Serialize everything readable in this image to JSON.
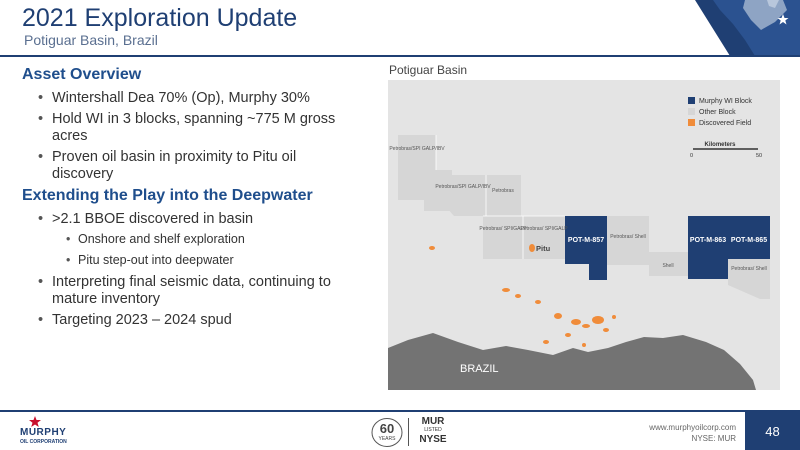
{
  "header": {
    "title": "2021 Exploration Update",
    "subtitle": "Potiguar Basin, Brazil"
  },
  "left": {
    "section1_title": "Asset Overview",
    "section1_bullets": [
      "Wintershall Dea 70% (Op), Murphy 30%",
      "Hold WI in 3 blocks, spanning ~775 M gross acres",
      "Proven oil basin in proximity to Pitu oil discovery"
    ],
    "section2_title": "Extending the Play into the Deepwater",
    "section2_bullet_a": ">2.1 BBOE discovered in basin",
    "section2_sub_bullets": [
      "Onshore and shelf exploration",
      "Pitu step-out into deepwater"
    ],
    "section2_bullets_rest": [
      "Interpreting final seismic data, continuing to mature inventory",
      "Targeting 2023 – 2024 spud"
    ]
  },
  "map": {
    "title": "Potiguar Basin",
    "legend": {
      "murphy": "Murphy WI Block",
      "other": "Other Block",
      "discovered": "Discovered Field"
    },
    "scale": {
      "label": "Kilometers",
      "min": "0",
      "max": "50"
    },
    "country_label": "BRAZIL",
    "pitu_label": "Pitu",
    "blocks": {
      "b1": "Petrobras/SPI GALP/IBV",
      "b2": "Petrobras/SPI GALP/IBV",
      "b3": "Petrobras",
      "b4": "Petrobras/ SPI/GALP",
      "b5": "Petrobras/ SPI/GALP",
      "pot857": "POT-M-857",
      "b7": "Petrobras/ Shell",
      "shell": "Shell",
      "pot863": "POT-M-863",
      "pot865": "POT-M-865",
      "b11": "Petrobras/ Shell"
    }
  },
  "colors": {
    "murphy_block": "#1f3f73",
    "other_block": "#d6d6d6",
    "discovered_field": "#f08c3a",
    "map_sea": "#e4e4e4",
    "land": "#737373"
  },
  "footer": {
    "logo_line1": "MURPHY",
    "logo_line2": "OIL CORPORATION",
    "years_num": "60",
    "years_word": "YEARS",
    "ticker": "MUR",
    "listed": "LISTED",
    "exchange": "NYSE",
    "url": "www.murphyoilcorp.com",
    "nyse_line": "NYSE: MUR",
    "page_number": "48"
  }
}
